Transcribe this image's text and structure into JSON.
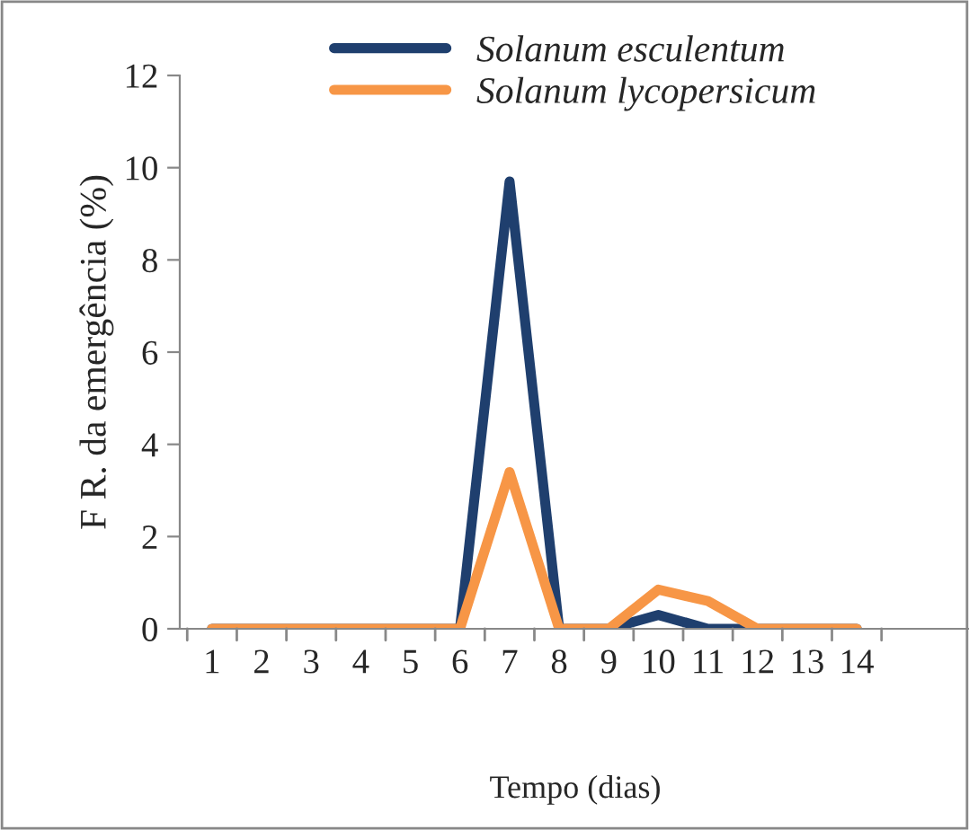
{
  "chart_data": {
    "type": "line",
    "xlabel": "Tempo (dias)",
    "ylabel": "F R. da emergência (%)",
    "categories": [
      "1",
      "2",
      "3",
      "4",
      "5",
      "6",
      "7",
      "8",
      "9",
      "10",
      "11",
      "12",
      "13",
      "14"
    ],
    "series": [
      {
        "name": "Solanum esculentum",
        "color": "#1f3f6e",
        "values": [
          0,
          0,
          0,
          0,
          0,
          0,
          9.7,
          0,
          0,
          0.3,
          0,
          0,
          0,
          0
        ]
      },
      {
        "name": "Solanum lycopersicum",
        "color": "#f79646",
        "values": [
          0,
          0,
          0,
          0,
          0,
          0,
          3.4,
          0,
          0,
          0.85,
          0.6,
          0,
          0,
          0
        ]
      }
    ],
    "ylim": [
      0,
      12
    ],
    "yticks": [
      0,
      2,
      4,
      6,
      8,
      10,
      12
    ],
    "grid": false,
    "legend": "top",
    "marker": "none",
    "line_style": "solid"
  }
}
